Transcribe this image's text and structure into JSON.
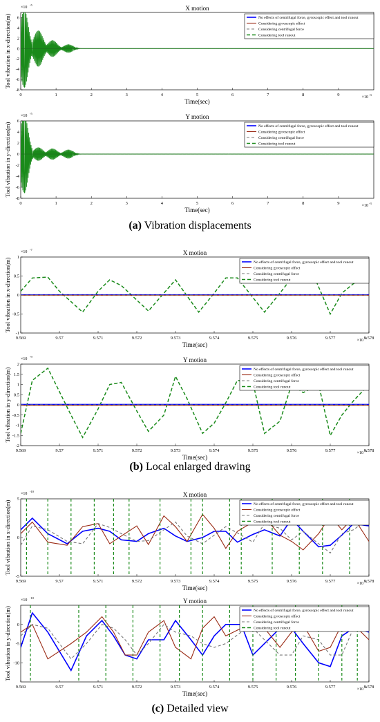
{
  "legend_entries": [
    "No effects of centrifugal force, gyroscopic effect and tool runout",
    "Considering gyroscopic effect",
    "Considering centrifugal force",
    "Considering tool runout"
  ],
  "series_styles": [
    {
      "color": "#0000ff",
      "dash": "",
      "width": 1.6
    },
    {
      "color": "#9a2a14",
      "dash": "",
      "width": 1.1
    },
    {
      "color": "#777777",
      "dash": "4,3",
      "width": 1.1
    },
    {
      "color": "#1a8a1a",
      "dash": "5,3",
      "width": 1.5
    }
  ],
  "captions": [
    {
      "label": "(a)",
      "text": " Vibration displacements"
    },
    {
      "label": "(b)",
      "text": " Local enlarged drawing"
    },
    {
      "label": "(c)",
      "text": " Detailed view"
    }
  ],
  "chart_data": [
    {
      "id": "a-x",
      "type": "line",
      "title": "X motion",
      "xlabel": "Time(sec)",
      "ylabel": "Tool vibration in x-direction(m)",
      "xlim": [
        0,
        0.01
      ],
      "ylim": [
        -8e-05,
        7e-05
      ],
      "x_ticks": [
        "0",
        "1",
        "2",
        "3",
        "4",
        "5",
        "6",
        "7",
        "8",
        "9"
      ],
      "x_exponent": "×10",
      "x_exponent_power": "-3",
      "y_ticks": [
        "6",
        "4",
        "2",
        "0",
        "-2",
        "-4",
        "-6",
        "-8"
      ],
      "y_exponent": "×10",
      "y_exponent_power": "-5",
      "envelope_bursts": [
        {
          "t": 0.0001,
          "amp": 7.5e-05
        },
        {
          "t": 0.0005,
          "amp": 3.5e-05
        },
        {
          "t": 0.0009,
          "amp": 1.6e-05
        },
        {
          "t": 0.00135,
          "amp": 8e-06
        }
      ]
    },
    {
      "id": "a-y",
      "type": "line",
      "title": "Y motion",
      "xlabel": "Time(sec)",
      "ylabel": "Tool vibration in y-direction(m)",
      "xlim": [
        0,
        0.01
      ],
      "ylim": [
        -8e-05,
        6e-05
      ],
      "x_ticks": [
        "0",
        "1",
        "2",
        "3",
        "4",
        "5",
        "6",
        "7",
        "8",
        "9"
      ],
      "x_exponent": "×10",
      "x_exponent_power": "-3",
      "y_ticks": [
        "6",
        "4",
        "2",
        "0",
        "-2",
        "-4",
        "-6",
        "-8"
      ],
      "y_exponent": "×10",
      "y_exponent_power": "-5",
      "envelope_bursts": [
        {
          "t": 0.0001,
          "amp": 7e-05
        },
        {
          "t": 0.0005,
          "amp": 1.2e-05
        },
        {
          "t": 0.0009,
          "amp": 1e-05
        },
        {
          "t": 0.00135,
          "amp": 8e-06
        }
      ]
    },
    {
      "id": "b-x",
      "type": "line",
      "title": "X motion",
      "xlabel": "Time(sec)",
      "ylabel": "Tool vibration in x-direction(m)",
      "xlim": [
        9.569,
        9.578
      ],
      "ylim": [
        -1,
        1
      ],
      "x_ticks": [
        "9.569",
        "9.57",
        "9.571",
        "9.572",
        "9.573",
        "9.574",
        "9.575",
        "9.576",
        "9.577",
        "9.578"
      ],
      "x_exponent": "×10",
      "x_exponent_power": "-3",
      "y_ticks": [
        "1",
        "0.5",
        "0",
        "-0.5",
        "-1"
      ],
      "y_exponent": "×10",
      "y_exponent_power": "-7",
      "series": [
        {
          "name": "Considering tool runout",
          "x": [
            9.569,
            9.5693,
            9.5697,
            9.57,
            9.5706,
            9.571,
            9.5713,
            9.5716,
            9.5723,
            9.5727,
            9.573,
            9.5736,
            9.574,
            9.5743,
            9.5746,
            9.5753,
            9.5757,
            9.576,
            9.5766,
            9.577,
            9.5773,
            9.5776,
            9.578
          ],
          "y": [
            0.1,
            0.45,
            0.47,
            0.1,
            -0.45,
            0.1,
            0.4,
            0.25,
            -0.42,
            0.05,
            0.4,
            -0.45,
            0.05,
            0.45,
            0.45,
            -0.45,
            0.05,
            0.45,
            0.45,
            -0.5,
            0.05,
            0.3,
            0.43
          ]
        },
        {
          "name": "No effects of centrifugal force, gyroscopic effect and tool runout",
          "x": [
            9.569,
            9.578
          ],
          "y": [
            0.005,
            0.005
          ]
        },
        {
          "name": "Considering gyroscopic effect",
          "x": [
            9.569,
            9.578
          ],
          "y": [
            -0.005,
            -0.005
          ]
        },
        {
          "name": "Considering centrifugal force",
          "x": [
            9.569,
            9.578
          ],
          "y": [
            0.0,
            0.0
          ]
        }
      ]
    },
    {
      "id": "b-y",
      "type": "line",
      "title": "Y motion",
      "xlabel": "Time(sec)",
      "ylabel": "Tool vibration in y-direction(m)",
      "xlim": [
        9.569,
        9.578
      ],
      "ylim": [
        -2,
        2
      ],
      "x_ticks": [
        "9.569",
        "9.57",
        "9.571",
        "9.572",
        "9.573",
        "9.574",
        "9.575",
        "9.576",
        "9.577",
        "9.578"
      ],
      "x_exponent": "×10",
      "x_exponent_power": "-3",
      "y_ticks": [
        "2",
        "1.5",
        "1",
        "0.5",
        "0",
        "-0.5",
        "-1",
        "-1.5",
        "-2"
      ],
      "y_exponent": "×10",
      "y_exponent_power": "-9",
      "series": [
        {
          "name": "Considering tool runout",
          "x": [
            9.569,
            9.5693,
            9.5697,
            9.5703,
            9.5706,
            9.571,
            9.5713,
            9.5716,
            9.572,
            9.5723,
            9.5727,
            9.573,
            9.5733,
            9.5737,
            9.574,
            9.5743,
            9.5746,
            9.575,
            9.5753,
            9.5757,
            9.576,
            9.5763,
            9.5767,
            9.577,
            9.5773,
            9.5776,
            9.578
          ],
          "y": [
            -1.4,
            1.2,
            1.8,
            -0.5,
            -1.6,
            -0.2,
            1.0,
            1.1,
            -0.3,
            -1.3,
            -0.5,
            1.4,
            0.3,
            -1.4,
            -0.9,
            0.1,
            1.2,
            1.1,
            -1.4,
            -0.8,
            1.0,
            0.6,
            1.0,
            -1.5,
            -0.5,
            0.2,
            1.0
          ]
        },
        {
          "name": "No effects of centrifugal force, gyroscopic effect and tool runout",
          "x": [
            9.569,
            9.578
          ],
          "y": [
            0.02,
            0.02
          ]
        },
        {
          "name": "Considering gyroscopic effect",
          "x": [
            9.569,
            9.578
          ],
          "y": [
            -0.02,
            -0.02
          ]
        },
        {
          "name": "Considering centrifugal force",
          "x": [
            9.569,
            9.578
          ],
          "y": [
            0.0,
            0.0
          ]
        }
      ]
    },
    {
      "id": "c-x",
      "type": "line",
      "title": "X motion",
      "xlabel": "Time(sec)",
      "ylabel": "Tool vibration in x-direction(m)",
      "xlim": [
        9.569,
        9.578
      ],
      "ylim": [
        -5,
        5
      ],
      "x_ticks": [
        "9.569",
        "9.57",
        "9.571",
        "9.572",
        "9.573",
        "9.574",
        "9.575",
        "9.576",
        "9.577",
        "9.578"
      ],
      "x_exponent": "×10",
      "x_exponent_power": "-3",
      "y_ticks": [
        "5",
        "0",
        "-5"
      ],
      "y_exponent": "×10",
      "y_exponent_power": "-10",
      "series": [
        {
          "name": "No effects of centrifugal force, gyroscopic effect and tool runout",
          "x": [
            9.569,
            9.5693,
            9.5697,
            9.5702,
            9.5706,
            9.571,
            9.5713,
            9.5716,
            9.572,
            9.5723,
            9.5727,
            9.573,
            9.5733,
            9.5737,
            9.574,
            9.5743,
            9.5746,
            9.575,
            9.5753,
            9.5757,
            9.576,
            9.5763,
            9.5767,
            9.577,
            9.5773,
            9.5776,
            9.578
          ],
          "y": [
            1,
            2.5,
            0.5,
            -0.8,
            0.8,
            1.2,
            0.8,
            -0.3,
            -0.5,
            0.5,
            1.2,
            0.2,
            -0.5,
            0,
            0.8,
            0.8,
            -0.6,
            0.4,
            1.0,
            0.2,
            2.4,
            0.8,
            -1.2,
            -1.0,
            0.3,
            1.8,
            1.5
          ]
        },
        {
          "name": "Considering gyroscopic effect",
          "x": [
            9.569,
            9.5693,
            9.5697,
            9.5702,
            9.5706,
            9.571,
            9.5713,
            9.5716,
            9.572,
            9.5723,
            9.5727,
            9.573,
            9.5733,
            9.5737,
            9.574,
            9.5743,
            9.5746,
            9.575,
            9.5753,
            9.5757,
            9.576,
            9.5763,
            9.5767,
            9.577,
            9.5773,
            9.5776,
            9.578
          ],
          "y": [
            0.5,
            2.0,
            -0.6,
            -1.0,
            1.4,
            1.8,
            -0.8,
            0.2,
            1.5,
            -0.9,
            2.8,
            1.4,
            -0.5,
            3.0,
            1.2,
            -1.4,
            0.8,
            2.0,
            2.6,
            0.3,
            -0.5,
            -1.6,
            0.5,
            2.8,
            1.0,
            2.6,
            -0.5
          ]
        },
        {
          "name": "Considering centrifugal force",
          "x": [
            9.569,
            9.5693,
            9.5697,
            9.5702,
            9.5706,
            9.571,
            9.5713,
            9.5716,
            9.572,
            9.5723,
            9.5727,
            9.573,
            9.5733,
            9.5737,
            9.574,
            9.5743,
            9.5746,
            9.575,
            9.5753,
            9.5757,
            9.576,
            9.5763,
            9.5767,
            9.577,
            9.5773,
            9.5776,
            9.578
          ],
          "y": [
            -1.0,
            1.5,
            1.0,
            -0.5,
            -0.8,
            1.8,
            1.3,
            0.5,
            -0.5,
            -0.4,
            1.0,
            2.0,
            0.2,
            -0.8,
            0.3,
            1.4,
            0.6,
            -0.6,
            1.8,
            1.2,
            -0.3,
            0.8,
            -0.8,
            -2.0,
            0.5,
            1.0,
            2.5
          ]
        },
        {
          "name": "Considering tool runout",
          "vertical_lines": [
            9.56915,
            9.5697,
            9.5703,
            9.5709,
            9.5714,
            9.5718,
            9.5726,
            9.5734,
            9.5737,
            9.5744,
            9.5747,
            9.5755,
            9.5762,
            9.5768,
            9.5775
          ]
        }
      ]
    },
    {
      "id": "c-y",
      "type": "line",
      "title": "Y motion",
      "xlabel": "Time(sec)",
      "ylabel": "Tool vibration in y-direction(m)",
      "xlim": [
        9.569,
        9.578
      ],
      "ylim": [
        -15,
        5
      ],
      "x_ticks": [
        "9.569",
        "9.57",
        "9.571",
        "9.572",
        "9.573",
        "9.574",
        "9.575",
        "9.576",
        "9.577",
        "9.578"
      ],
      "x_exponent": "×10",
      "x_exponent_power": "-3",
      "y_ticks": [
        "0",
        "-5",
        "-10"
      ],
      "y_exponent": "×10",
      "y_exponent_power": "-10",
      "series": [
        {
          "name": "No effects of centrifugal force, gyroscopic effect and tool runout",
          "x": [
            9.569,
            9.5693,
            9.5697,
            9.5703,
            9.5707,
            9.5711,
            9.5714,
            9.5717,
            9.572,
            9.5723,
            9.5727,
            9.573,
            9.5734,
            9.5737,
            9.574,
            9.5743,
            9.5747,
            9.575,
            9.5753,
            9.5757,
            9.576,
            9.5763,
            9.5767,
            9.577,
            9.5773,
            9.5776,
            9.578
          ],
          "y": [
            -6,
            3,
            -2,
            -12,
            -3,
            1,
            -3,
            -8,
            -9,
            -4,
            -4,
            1,
            -4,
            -8,
            -3,
            0,
            0,
            -8,
            -5,
            -1,
            -1,
            -5,
            -10,
            -11,
            -3,
            -1,
            -2
          ]
        },
        {
          "name": "Considering gyroscopic effect",
          "x": [
            9.569,
            9.5693,
            9.5697,
            9.5703,
            9.5707,
            9.5711,
            9.5714,
            9.5717,
            9.572,
            9.5723,
            9.5727,
            9.573,
            9.5734,
            9.5737,
            9.574,
            9.5743,
            9.5747,
            9.575,
            9.5753,
            9.5757,
            9.576,
            9.5763,
            9.5767,
            9.577,
            9.5773,
            9.5776,
            9.578
          ],
          "y": [
            -2,
            0,
            -9,
            -5,
            -2,
            2,
            -2,
            -8,
            -8,
            -2,
            1,
            -6,
            -9,
            -1,
            2,
            -3,
            -1,
            2,
            -1,
            -6,
            -2,
            0,
            -7,
            -6,
            0,
            0,
            -4
          ]
        },
        {
          "name": "Considering centrifugal force",
          "x": [
            9.569,
            9.5693,
            9.5697,
            9.5703,
            9.5707,
            9.5711,
            9.5714,
            9.5717,
            9.572,
            9.5723,
            9.5727,
            9.573,
            9.5734,
            9.5737,
            9.574,
            9.5743,
            9.5747,
            9.575,
            9.5753,
            9.5757,
            9.576,
            9.5763,
            9.5767,
            9.577,
            9.5773,
            9.5776,
            9.578
          ],
          "y": [
            -3,
            0,
            -1,
            -9,
            -5,
            0,
            -1,
            -4,
            -8,
            -5,
            0,
            -2,
            -3,
            -5,
            -6,
            -5,
            -2,
            -1,
            -4,
            -8,
            -8,
            -3,
            -4,
            -8,
            -8,
            -1,
            0
          ]
        },
        {
          "name": "Considering tool runout",
          "vertical_lines": [
            9.56925,
            9.5705,
            9.5712,
            9.5719,
            9.5726,
            9.5731,
            9.5737,
            9.5744,
            9.575,
            9.5756,
            9.5761,
            9.5767,
            9.5773,
            9.5777
          ]
        }
      ]
    }
  ]
}
